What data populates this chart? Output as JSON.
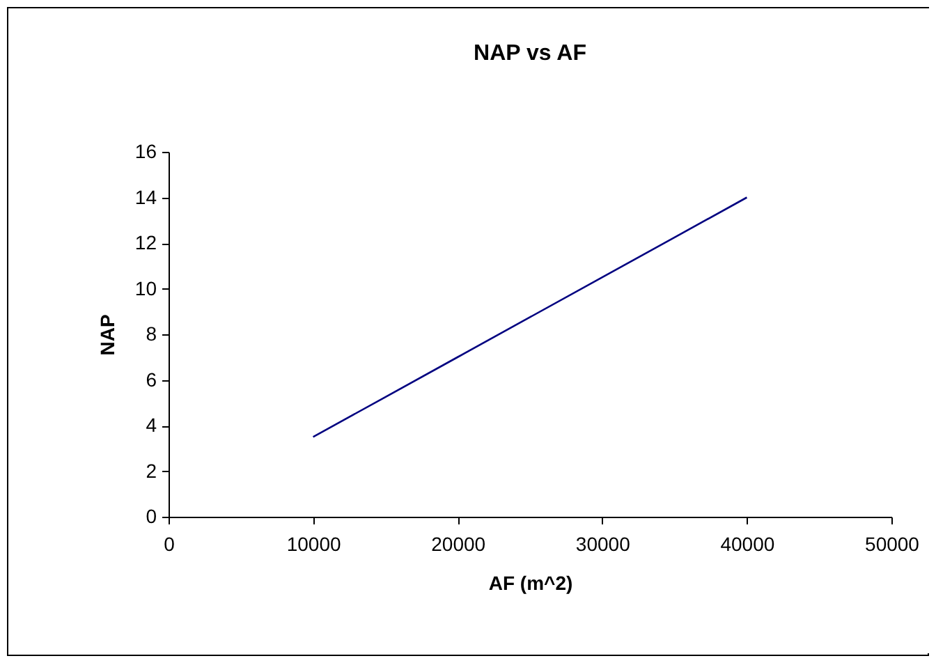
{
  "chart_data": {
    "type": "line",
    "title": "NAP vs AF",
    "xlabel": "AF (m^2)",
    "ylabel": "NAP",
    "x": [
      10000,
      15000,
      20000,
      25000,
      30000,
      35000,
      40000
    ],
    "series": [
      {
        "color": "#000080",
        "values": [
          3.5,
          5.25,
          7,
          8.75,
          10.5,
          12.25,
          14
        ]
      }
    ],
    "xlim": [
      0,
      50000
    ],
    "xticks": [
      0,
      10000,
      20000,
      30000,
      40000,
      50000
    ],
    "ylim": [
      0,
      16
    ],
    "yticks": [
      0,
      2,
      4,
      6,
      8,
      10,
      12,
      14,
      16
    ],
    "grid": false,
    "legend": false,
    "marker": "none",
    "line_style": "solid"
  }
}
